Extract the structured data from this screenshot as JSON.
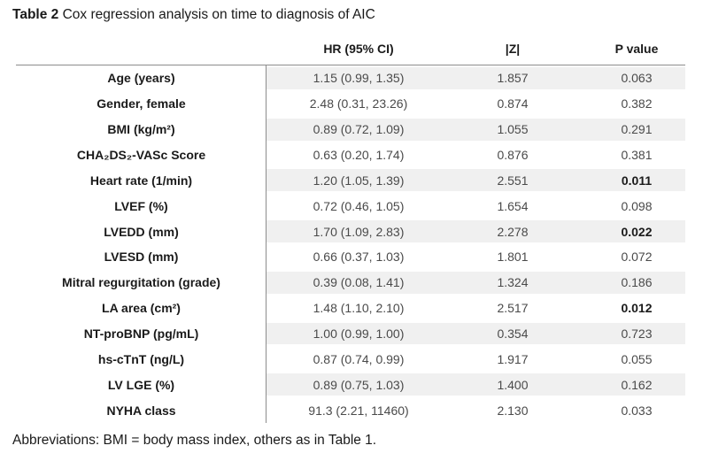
{
  "title": {
    "number": "Table 2",
    "text": " Cox regression analysis on time to diagnosis of AIC"
  },
  "columns": {
    "hr": "HR (95% CI)",
    "z": "|Z|",
    "p": "P value"
  },
  "rows": [
    {
      "label": "Age (years)",
      "hr": "1.15 (0.99, 1.35)",
      "z": "1.857",
      "p": "0.063",
      "p_bold": false
    },
    {
      "label": "Gender, female",
      "hr": "2.48 (0.31, 23.26)",
      "z": "0.874",
      "p": "0.382",
      "p_bold": false
    },
    {
      "label": "BMI (kg/m²)",
      "hr": "0.89 (0.72, 1.09)",
      "z": "1.055",
      "p": "0.291",
      "p_bold": false
    },
    {
      "label": "CHA₂DS₂-VASc Score",
      "hr": "0.63 (0.20, 1.74)",
      "z": "0.876",
      "p": "0.381",
      "p_bold": false
    },
    {
      "label": "Heart rate (1/min)",
      "hr": "1.20 (1.05, 1.39)",
      "z": "2.551",
      "p": "0.011",
      "p_bold": true
    },
    {
      "label": "LVEF (%)",
      "hr": "0.72 (0.46, 1.05)",
      "z": "1.654",
      "p": "0.098",
      "p_bold": false
    },
    {
      "label": "LVEDD (mm)",
      "hr": "1.70 (1.09, 2.83)",
      "z": "2.278",
      "p": "0.022",
      "p_bold": true
    },
    {
      "label": "LVESD (mm)",
      "hr": "0.66 (0.37, 1.03)",
      "z": "1.801",
      "p": "0.072",
      "p_bold": false
    },
    {
      "label": "Mitral regurgitation (grade)",
      "hr": "0.39 (0.08, 1.41)",
      "z": "1.324",
      "p": "0.186",
      "p_bold": false
    },
    {
      "label": "LA area (cm²)",
      "hr": "1.48 (1.10, 2.10)",
      "z": "2.517",
      "p": "0.012",
      "p_bold": true
    },
    {
      "label": "NT-proBNP (pg/mL)",
      "hr": "1.00 (0.99, 1.00)",
      "z": "0.354",
      "p": "0.723",
      "p_bold": false
    },
    {
      "label": "hs-cTnT (ng/L)",
      "hr": "0.87 (0.74, 0.99)",
      "z": "1.917",
      "p": "0.055",
      "p_bold": false
    },
    {
      "label": "LV LGE (%)",
      "hr": "0.89 (0.75, 1.03)",
      "z": "1.400",
      "p": "0.162",
      "p_bold": false
    },
    {
      "label": "NYHA class",
      "hr": "91.3 (2.21, 11460)",
      "z": "2.130",
      "p": "0.033",
      "p_bold": false
    }
  ],
  "footnote": "Abbreviations: BMI = body mass index, others as in Table 1."
}
